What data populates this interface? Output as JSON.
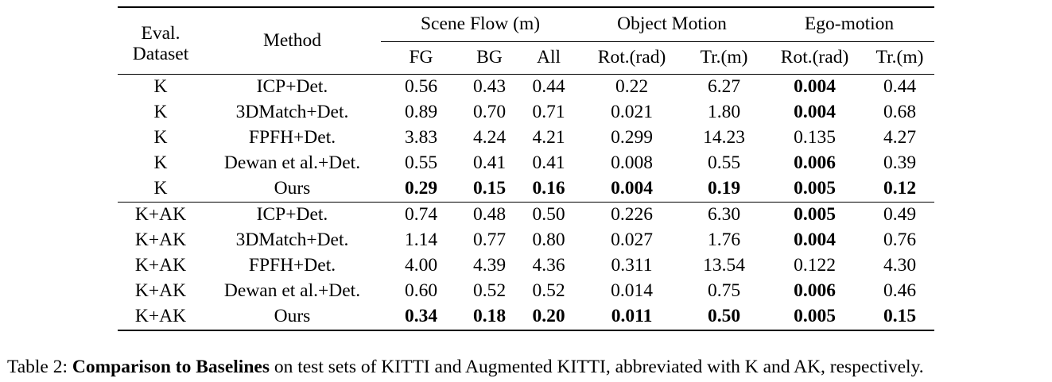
{
  "table": {
    "col_eval_dataset": "Eval.\nDataset",
    "col_method": "Method",
    "groups": [
      "Scene Flow (m)",
      "Object Motion",
      "Ego-motion"
    ],
    "subcols": [
      "FG",
      "BG",
      "All",
      "Rot.(rad)",
      "Tr.(m)",
      "Rot.(rad)",
      "Tr.(m)"
    ],
    "sections": [
      {
        "rows": [
          {
            "dataset": "K",
            "method": "ICP+Det.",
            "values": [
              "0.56",
              "0.43",
              "0.44",
              "0.22",
              "6.27",
              "0.004",
              "0.44"
            ],
            "bold": [
              false,
              false,
              false,
              false,
              false,
              true,
              false
            ]
          },
          {
            "dataset": "K",
            "method": "3DMatch+Det.",
            "values": [
              "0.89",
              "0.70",
              "0.71",
              "0.021",
              "1.80",
              "0.004",
              "0.68"
            ],
            "bold": [
              false,
              false,
              false,
              false,
              false,
              true,
              false
            ]
          },
          {
            "dataset": "K",
            "method": "FPFH+Det.",
            "values": [
              "3.83",
              "4.24",
              "4.21",
              "0.299",
              "14.23",
              "0.135",
              "4.27"
            ],
            "bold": [
              false,
              false,
              false,
              false,
              false,
              false,
              false
            ]
          },
          {
            "dataset": "K",
            "method": "Dewan et al.+Det.",
            "values": [
              "0.55",
              "0.41",
              "0.41",
              "0.008",
              "0.55",
              "0.006",
              "0.39"
            ],
            "bold": [
              false,
              false,
              false,
              false,
              false,
              true,
              false
            ]
          },
          {
            "dataset": "K",
            "method": "Ours",
            "values": [
              "0.29",
              "0.15",
              "0.16",
              "0.004",
              "0.19",
              "0.005",
              "0.12"
            ],
            "bold": [
              true,
              true,
              true,
              true,
              true,
              true,
              true
            ]
          }
        ]
      },
      {
        "rows": [
          {
            "dataset": "K+AK",
            "method": "ICP+Det.",
            "values": [
              "0.74",
              "0.48",
              "0.50",
              "0.226",
              "6.30",
              "0.005",
              "0.49"
            ],
            "bold": [
              false,
              false,
              false,
              false,
              false,
              true,
              false
            ]
          },
          {
            "dataset": "K+AK",
            "method": "3DMatch+Det.",
            "values": [
              "1.14",
              "0.77",
              "0.80",
              "0.027",
              "1.76",
              "0.004",
              "0.76"
            ],
            "bold": [
              false,
              false,
              false,
              false,
              false,
              true,
              false
            ]
          },
          {
            "dataset": "K+AK",
            "method": "FPFH+Det.",
            "values": [
              "4.00",
              "4.39",
              "4.36",
              "0.311",
              "13.54",
              "0.122",
              "4.30"
            ],
            "bold": [
              false,
              false,
              false,
              false,
              false,
              false,
              false
            ]
          },
          {
            "dataset": "K+AK",
            "method": "Dewan et al.+Det.",
            "values": [
              "0.60",
              "0.52",
              "0.52",
              "0.014",
              "0.75",
              "0.006",
              "0.46"
            ],
            "bold": [
              false,
              false,
              false,
              false,
              false,
              true,
              false
            ]
          },
          {
            "dataset": "K+AK",
            "method": "Ours",
            "values": [
              "0.34",
              "0.18",
              "0.20",
              "0.011",
              "0.50",
              "0.005",
              "0.15"
            ],
            "bold": [
              true,
              true,
              true,
              true,
              true,
              true,
              true
            ]
          }
        ]
      }
    ]
  },
  "caption": {
    "label": "Table 2: ",
    "bold": "Comparison to Baselines",
    "text": " on test sets of KITTI and Augmented KITTI, abbreviated with K and AK, respectively."
  }
}
